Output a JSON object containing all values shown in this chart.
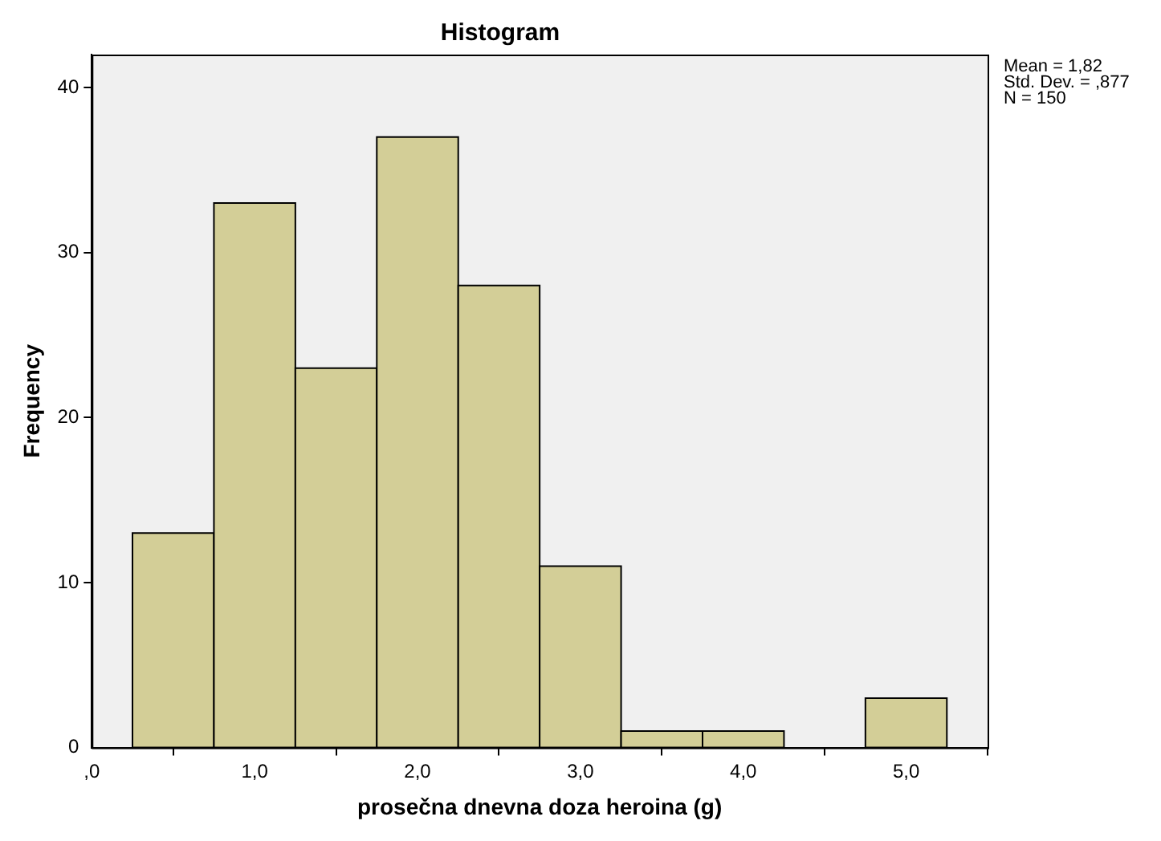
{
  "chart_data": {
    "type": "histogram",
    "title": "Histogram",
    "xlabel": "prosečna dnevna doza heroina (g)",
    "ylabel": "Frequency",
    "bins": [
      0.25,
      0.75,
      1.25,
      1.75,
      2.25,
      2.75,
      3.25,
      3.75,
      4.25,
      4.75,
      5.25
    ],
    "values": [
      13,
      33,
      23,
      37,
      28,
      11,
      1,
      1,
      0,
      3
    ],
    "color": "#d3ce97",
    "xlim": [
      0,
      5.5
    ],
    "xticks": [
      {
        "value": 0,
        "label": ",0"
      },
      {
        "value": 1,
        "label": "1,0"
      },
      {
        "value": 2,
        "label": "2,0"
      },
      {
        "value": 3,
        "label": "3,0"
      },
      {
        "value": 4,
        "label": "4,0"
      },
      {
        "value": 5,
        "label": "5,0"
      }
    ],
    "ylim": [
      0,
      42
    ],
    "yticks": [
      0,
      10,
      20,
      30,
      40
    ],
    "grid": false,
    "legend": false,
    "annotations": [
      "Mean = 1,82",
      "Std. Dev. = ,877",
      "N = 150"
    ]
  }
}
